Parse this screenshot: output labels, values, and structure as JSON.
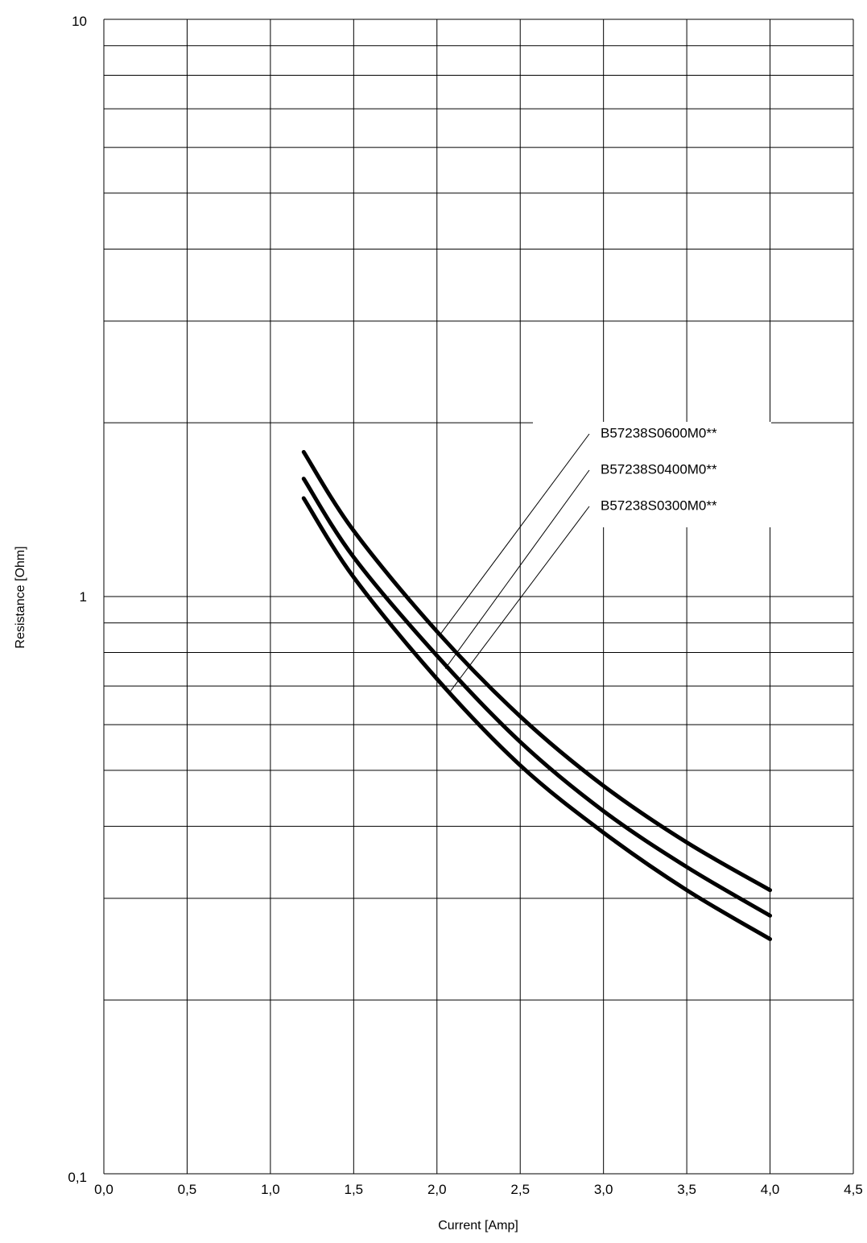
{
  "chart_data": {
    "type": "line",
    "xlabel": "Current [Amp]",
    "ylabel": "Resistance [Ohm]",
    "xlim": [
      0.0,
      4.5
    ],
    "ylim": [
      0.1,
      10
    ],
    "y_scale": "log",
    "grid": true,
    "x_ticks": [
      "0,0",
      "0,5",
      "1,0",
      "1,5",
      "2,0",
      "2,5",
      "3,0",
      "3,5",
      "4,0",
      "4,5"
    ],
    "x_tick_values": [
      0.0,
      0.5,
      1.0,
      1.5,
      2.0,
      2.5,
      3.0,
      3.5,
      4.0,
      4.5
    ],
    "y_ticks": [
      "0,1",
      "1",
      "10"
    ],
    "y_tick_values": [
      0.1,
      1,
      10
    ],
    "legend_placement": "inside, upper-right with leader lines",
    "series": [
      {
        "name": "B57238S0600M0**",
        "x": [
          1.2,
          1.5,
          2.0,
          2.5,
          3.0,
          3.5,
          4.0
        ],
        "y": [
          1.78,
          1.3,
          0.87,
          0.62,
          0.47,
          0.375,
          0.31
        ],
        "leader_anchor": [
          2.02,
          0.86
        ]
      },
      {
        "name": "B57238S0400M0**",
        "x": [
          1.2,
          1.5,
          2.0,
          2.5,
          3.0,
          3.5,
          4.0
        ],
        "y": [
          1.6,
          1.17,
          0.79,
          0.56,
          0.425,
          0.34,
          0.28
        ],
        "leader_anchor": [
          2.05,
          0.75
        ]
      },
      {
        "name": "B57238S0300M0**",
        "x": [
          1.2,
          1.5,
          2.0,
          2.5,
          3.0,
          3.5,
          4.0
        ],
        "y": [
          1.48,
          1.08,
          0.72,
          0.51,
          0.39,
          0.31,
          0.255
        ],
        "leader_anchor": [
          2.08,
          0.685
        ]
      }
    ]
  }
}
